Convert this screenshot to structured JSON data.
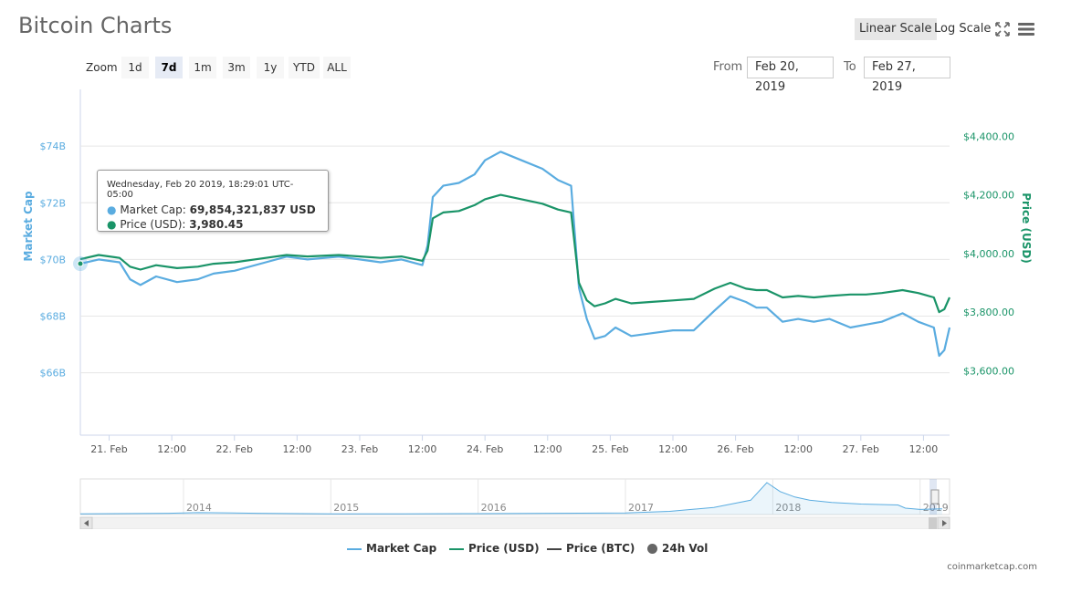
{
  "title": "Bitcoin Charts",
  "scale_options": [
    {
      "label": "Linear Scale",
      "active": true
    },
    {
      "label": "Log Scale",
      "active": false
    }
  ],
  "icons": {
    "fullscreen": "fullscreen-icon",
    "menu": "hamburger-menu-icon"
  },
  "zoom": {
    "label": "Zoom",
    "buttons": [
      {
        "label": "1d",
        "active": false
      },
      {
        "label": "7d",
        "active": true
      },
      {
        "label": "1m",
        "active": false
      },
      {
        "label": "3m",
        "active": false
      },
      {
        "label": "1y",
        "active": false
      },
      {
        "label": "YTD",
        "active": false
      },
      {
        "label": "ALL",
        "active": false
      }
    ]
  },
  "range": {
    "from_label": "From",
    "from_value": "Feb 20, 2019",
    "to_label": "To",
    "to_value": "Feb 27, 2019"
  },
  "tooltip": {
    "date": "Wednesday, Feb 20 2019, 18:29:01 UTC-05:00",
    "market_cap_label": "Market Cap:",
    "market_cap_value": "69,854,321,837 USD",
    "price_label": "Price (USD):",
    "price_value": "3,980.45"
  },
  "legend": [
    {
      "label": "Market Cap",
      "color": "#5aace0",
      "type": "line"
    },
    {
      "label": "Price (USD)",
      "color": "#1a9468",
      "type": "line"
    },
    {
      "label": "Price (BTC)",
      "color": "#444444",
      "type": "line"
    },
    {
      "label": "24h Vol",
      "color": "#666666",
      "type": "dot"
    }
  ],
  "credits": "coinmarketcap.com",
  "navigator": {
    "year_labels": [
      "2014",
      "2015",
      "2016",
      "2017",
      "2018",
      "2019"
    ],
    "x_range": [
      2013.3,
      2019.2
    ],
    "series": [
      {
        "x": 2013.3,
        "y": 0.02
      },
      {
        "x": 2013.9,
        "y": 0.04
      },
      {
        "x": 2014.1,
        "y": 0.06
      },
      {
        "x": 2014.5,
        "y": 0.04
      },
      {
        "x": 2015.0,
        "y": 0.02
      },
      {
        "x": 2015.5,
        "y": 0.02
      },
      {
        "x": 2016.0,
        "y": 0.03
      },
      {
        "x": 2016.5,
        "y": 0.04
      },
      {
        "x": 2017.0,
        "y": 0.05
      },
      {
        "x": 2017.3,
        "y": 0.1
      },
      {
        "x": 2017.6,
        "y": 0.22
      },
      {
        "x": 2017.85,
        "y": 0.45
      },
      {
        "x": 2017.96,
        "y": 1.0
      },
      {
        "x": 2018.05,
        "y": 0.72
      },
      {
        "x": 2018.15,
        "y": 0.55
      },
      {
        "x": 2018.25,
        "y": 0.45
      },
      {
        "x": 2018.4,
        "y": 0.38
      },
      {
        "x": 2018.6,
        "y": 0.33
      },
      {
        "x": 2018.85,
        "y": 0.3
      },
      {
        "x": 2018.9,
        "y": 0.2
      },
      {
        "x": 2019.0,
        "y": 0.16
      },
      {
        "x": 2019.15,
        "y": 0.18
      }
    ]
  },
  "chart_data": {
    "type": "line",
    "title": "Bitcoin Charts",
    "x_range": [
      "2019-02-20 18:29",
      "2019-02-27 17:00"
    ],
    "x_tick_labels": [
      "21. Feb",
      "12:00",
      "22. Feb",
      "12:00",
      "23. Feb",
      "12:00",
      "24. Feb",
      "12:00",
      "25. Feb",
      "12:00",
      "26. Feb",
      "12:00",
      "27. Feb",
      "12:00"
    ],
    "x_ticks": [
      "2019-02-21 00:00",
      "2019-02-21 12:00",
      "2019-02-22 00:00",
      "2019-02-22 12:00",
      "2019-02-23 00:00",
      "2019-02-23 12:00",
      "2019-02-24 00:00",
      "2019-02-24 12:00",
      "2019-02-25 00:00",
      "2019-02-25 12:00",
      "2019-02-26 00:00",
      "2019-02-26 12:00",
      "2019-02-27 00:00",
      "2019-02-27 12:00"
    ],
    "y_left": {
      "label": "Market Cap",
      "ticks": [
        66,
        68,
        70,
        72,
        74
      ],
      "tick_labels": [
        "$66B",
        "$68B",
        "$70B",
        "$72B",
        "$74B"
      ],
      "range": [
        63.8,
        76.0
      ]
    },
    "y_right": {
      "label": "Price (USD)",
      "ticks": [
        3600,
        3800,
        4000,
        4200,
        4400
      ],
      "tick_labels": [
        "$3,600.00",
        "$3,800.00",
        "$4,000.00",
        "$4,200.00",
        "$4,400.00"
      ],
      "range": [
        3380,
        4560
      ]
    },
    "grid": true,
    "legend_position": "bottom-center",
    "series": [
      {
        "name": "Market Cap",
        "axis": "left",
        "color": "#5aace0",
        "points": [
          [
            "2019-02-20 18:29",
            69.85
          ],
          [
            "2019-02-20 22:00",
            70.0
          ],
          [
            "2019-02-21 02:00",
            69.9
          ],
          [
            "2019-02-21 04:00",
            69.3
          ],
          [
            "2019-02-21 06:00",
            69.1
          ],
          [
            "2019-02-21 09:00",
            69.4
          ],
          [
            "2019-02-21 13:00",
            69.2
          ],
          [
            "2019-02-21 17:00",
            69.3
          ],
          [
            "2019-02-21 20:00",
            69.5
          ],
          [
            "2019-02-22 00:00",
            69.6
          ],
          [
            "2019-02-22 06:00",
            69.9
          ],
          [
            "2019-02-22 10:00",
            70.1
          ],
          [
            "2019-02-22 14:00",
            70.0
          ],
          [
            "2019-02-22 20:00",
            70.1
          ],
          [
            "2019-02-23 00:00",
            70.0
          ],
          [
            "2019-02-23 04:00",
            69.9
          ],
          [
            "2019-02-23 08:00",
            70.0
          ],
          [
            "2019-02-23 12:00",
            69.8
          ],
          [
            "2019-02-23 13:00",
            70.5
          ],
          [
            "2019-02-23 14:00",
            72.2
          ],
          [
            "2019-02-23 16:00",
            72.6
          ],
          [
            "2019-02-23 19:00",
            72.7
          ],
          [
            "2019-02-23 22:00",
            73.0
          ],
          [
            "2019-02-24 00:00",
            73.5
          ],
          [
            "2019-02-24 03:00",
            73.8
          ],
          [
            "2019-02-24 07:00",
            73.5
          ],
          [
            "2019-02-24 11:00",
            73.2
          ],
          [
            "2019-02-24 14:00",
            72.8
          ],
          [
            "2019-02-24 16:30",
            72.6
          ],
          [
            "2019-02-24 18:00",
            69.0
          ],
          [
            "2019-02-24 19:30",
            67.9
          ],
          [
            "2019-02-24 21:00",
            67.2
          ],
          [
            "2019-02-24 23:00",
            67.3
          ],
          [
            "2019-02-25 01:00",
            67.6
          ],
          [
            "2019-02-25 04:00",
            67.3
          ],
          [
            "2019-02-25 08:00",
            67.4
          ],
          [
            "2019-02-25 12:00",
            67.5
          ],
          [
            "2019-02-25 16:00",
            67.5
          ],
          [
            "2019-02-25 20:00",
            68.2
          ],
          [
            "2019-02-25 23:00",
            68.7
          ],
          [
            "2019-02-26 02:00",
            68.5
          ],
          [
            "2019-02-26 04:00",
            68.3
          ],
          [
            "2019-02-26 06:00",
            68.3
          ],
          [
            "2019-02-26 09:00",
            67.8
          ],
          [
            "2019-02-26 12:00",
            67.9
          ],
          [
            "2019-02-26 15:00",
            67.8
          ],
          [
            "2019-02-26 18:00",
            67.9
          ],
          [
            "2019-02-26 22:00",
            67.6
          ],
          [
            "2019-02-27 01:00",
            67.7
          ],
          [
            "2019-02-27 04:00",
            67.8
          ],
          [
            "2019-02-27 08:00",
            68.1
          ],
          [
            "2019-02-27 11:00",
            67.8
          ],
          [
            "2019-02-27 14:00",
            67.6
          ],
          [
            "2019-02-27 15:00",
            66.6
          ],
          [
            "2019-02-27 16:00",
            66.8
          ],
          [
            "2019-02-27 17:00",
            67.6
          ]
        ]
      },
      {
        "name": "Price (USD)",
        "axis": "right",
        "color": "#1a9468",
        "points": [
          [
            "2019-02-20 18:29",
            3980.45
          ],
          [
            "2019-02-20 22:00",
            3995
          ],
          [
            "2019-02-21 02:00",
            3985
          ],
          [
            "2019-02-21 04:00",
            3955
          ],
          [
            "2019-02-21 06:00",
            3945
          ],
          [
            "2019-02-21 09:00",
            3960
          ],
          [
            "2019-02-21 13:00",
            3950
          ],
          [
            "2019-02-21 17:00",
            3955
          ],
          [
            "2019-02-21 20:00",
            3965
          ],
          [
            "2019-02-22 00:00",
            3970
          ],
          [
            "2019-02-22 06:00",
            3985
          ],
          [
            "2019-02-22 10:00",
            3995
          ],
          [
            "2019-02-22 14:00",
            3990
          ],
          [
            "2019-02-22 20:00",
            3995
          ],
          [
            "2019-02-23 00:00",
            3990
          ],
          [
            "2019-02-23 04:00",
            3985
          ],
          [
            "2019-02-23 08:00",
            3990
          ],
          [
            "2019-02-23 12:00",
            3975
          ],
          [
            "2019-02-23 13:00",
            4010
          ],
          [
            "2019-02-23 14:00",
            4120
          ],
          [
            "2019-02-23 16:00",
            4140
          ],
          [
            "2019-02-23 19:00",
            4145
          ],
          [
            "2019-02-23 22:00",
            4165
          ],
          [
            "2019-02-24 00:00",
            4185
          ],
          [
            "2019-02-24 03:00",
            4200
          ],
          [
            "2019-02-24 07:00",
            4185
          ],
          [
            "2019-02-24 11:00",
            4170
          ],
          [
            "2019-02-24 14:00",
            4150
          ],
          [
            "2019-02-24 16:30",
            4140
          ],
          [
            "2019-02-24 18:00",
            3900
          ],
          [
            "2019-02-24 19:30",
            3840
          ],
          [
            "2019-02-24 21:00",
            3820
          ],
          [
            "2019-02-24 23:00",
            3830
          ],
          [
            "2019-02-25 01:00",
            3845
          ],
          [
            "2019-02-25 04:00",
            3830
          ],
          [
            "2019-02-25 08:00",
            3835
          ],
          [
            "2019-02-25 12:00",
            3840
          ],
          [
            "2019-02-25 16:00",
            3845
          ],
          [
            "2019-02-25 20:00",
            3880
          ],
          [
            "2019-02-25 23:00",
            3900
          ],
          [
            "2019-02-26 02:00",
            3880
          ],
          [
            "2019-02-26 04:00",
            3875
          ],
          [
            "2019-02-26 06:00",
            3875
          ],
          [
            "2019-02-26 09:00",
            3850
          ],
          [
            "2019-02-26 12:00",
            3855
          ],
          [
            "2019-02-26 15:00",
            3850
          ],
          [
            "2019-02-26 18:00",
            3855
          ],
          [
            "2019-02-26 22:00",
            3860
          ],
          [
            "2019-02-27 01:00",
            3860
          ],
          [
            "2019-02-27 04:00",
            3865
          ],
          [
            "2019-02-27 08:00",
            3875
          ],
          [
            "2019-02-27 11:00",
            3865
          ],
          [
            "2019-02-27 14:00",
            3850
          ],
          [
            "2019-02-27 15:00",
            3800
          ],
          [
            "2019-02-27 16:00",
            3810
          ],
          [
            "2019-02-27 17:00",
            3850
          ]
        ]
      }
    ]
  }
}
